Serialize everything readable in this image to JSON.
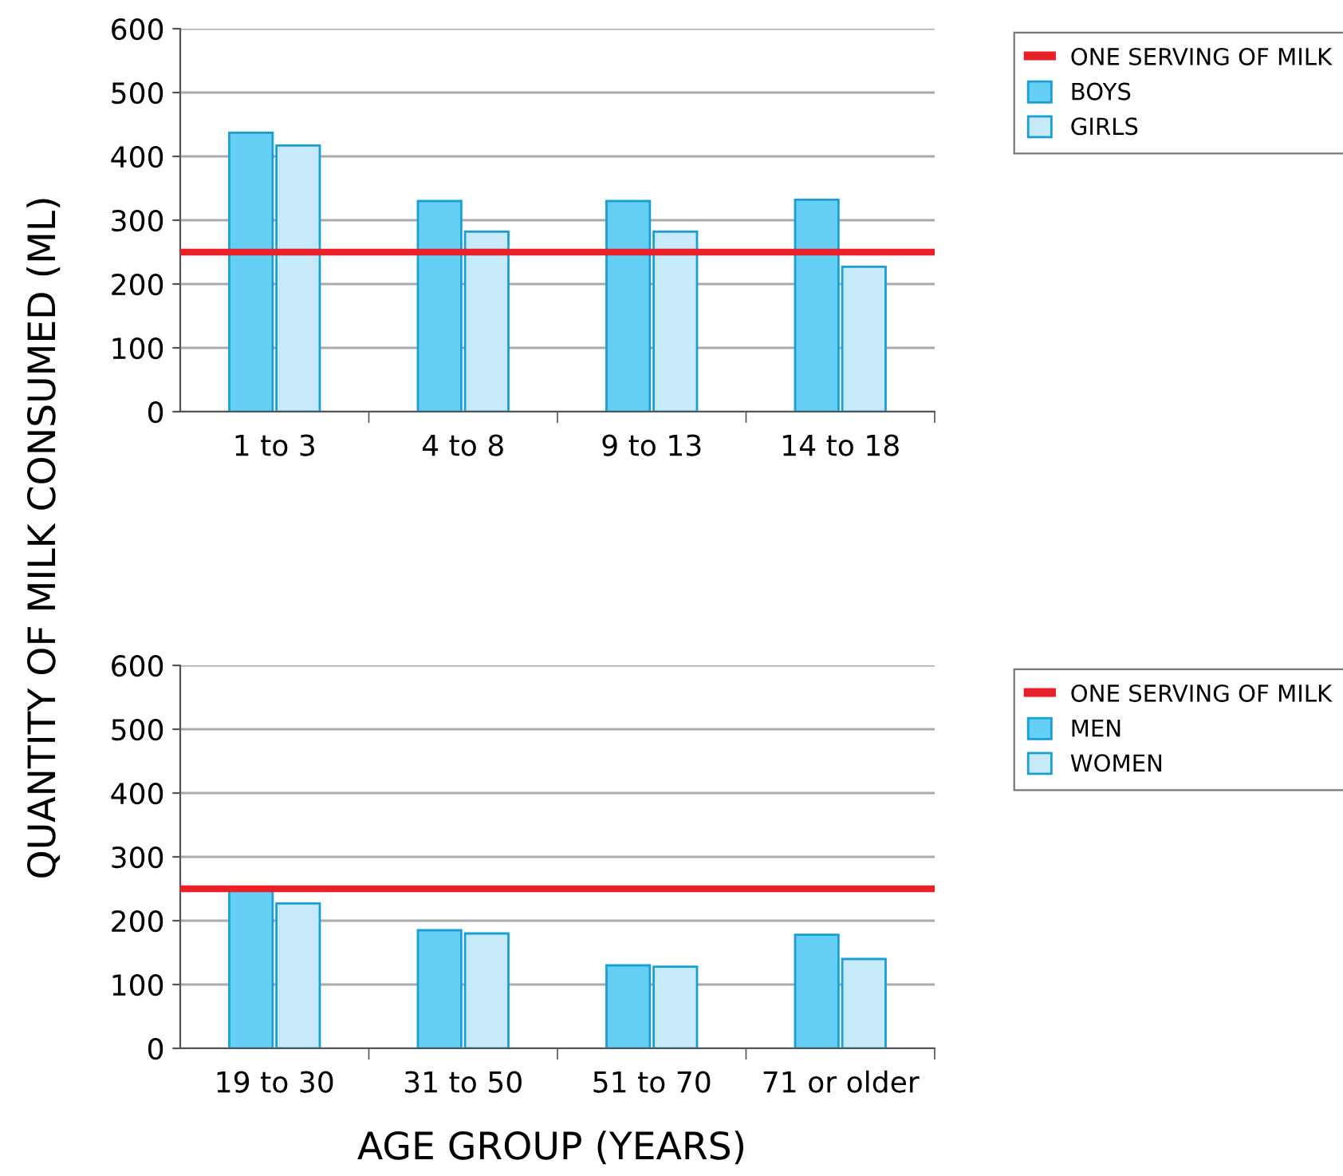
{
  "chart_data": [
    {
      "type": "bar",
      "ylabel": "QUANTITY OF MILK CONSUMED (ML)",
      "categories": [
        "1 to 3",
        "4 to 8",
        "9 to 13",
        "14 to 18"
      ],
      "series": [
        {
          "name": "BOYS",
          "color": "#66cff5",
          "values": [
            437,
            330,
            330,
            332
          ]
        },
        {
          "name": "GIRLS",
          "color": "#c6eaf9",
          "values": [
            417,
            282,
            282,
            227
          ]
        }
      ],
      "ylim": [
        0,
        600
      ],
      "yticks": [
        0,
        100,
        200,
        300,
        400,
        500,
        600
      ],
      "grid": "y",
      "legend": "right",
      "ref_lines": [
        {
          "axis": "y",
          "value": 250,
          "label": "ONE SERVING OF MILK",
          "color": "#e8202a"
        }
      ]
    },
    {
      "type": "bar",
      "xlabel": "AGE GROUP (YEARS)",
      "categories": [
        "19 to 30",
        "31 to 50",
        "51 to 70",
        "71 or older"
      ],
      "series": [
        {
          "name": "MEN",
          "color": "#66cff5",
          "values": [
            248,
            185,
            130,
            178
          ]
        },
        {
          "name": "WOMEN",
          "color": "#c6eaf9",
          "values": [
            227,
            180,
            128,
            140
          ]
        }
      ],
      "ylim": [
        0,
        600
      ],
      "yticks": [
        0,
        100,
        200,
        300,
        400,
        500,
        600
      ],
      "grid": "y",
      "legend": "right",
      "ref_lines": [
        {
          "axis": "y",
          "value": 250,
          "label": "ONE SERVING OF MILK",
          "color": "#e8202a"
        }
      ]
    }
  ]
}
